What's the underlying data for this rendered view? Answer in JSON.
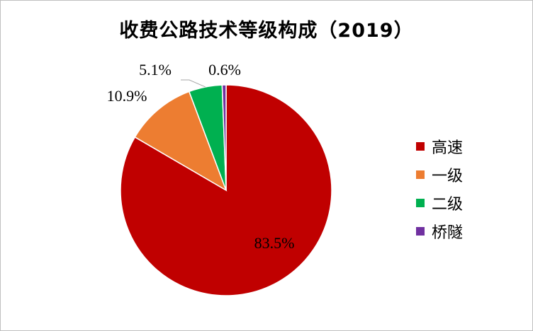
{
  "chart_data": {
    "type": "pie",
    "title": "收费公路技术等级构成（2019）",
    "categories": [
      "高速",
      "一级",
      "二级",
      "桥隧"
    ],
    "values": [
      83.5,
      10.9,
      5.1,
      0.6
    ],
    "labels": [
      "83.5%",
      "10.9%",
      "5.1%",
      "0.6%"
    ],
    "colors": [
      "#C00000",
      "#ED7D31",
      "#00B050",
      "#7030A0"
    ],
    "legend": "right"
  }
}
